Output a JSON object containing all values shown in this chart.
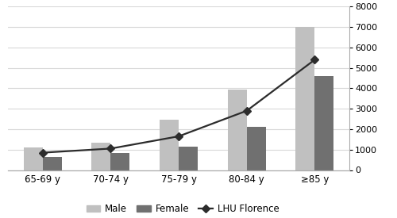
{
  "categories": [
    "65-69 y",
    "70-74 y",
    "75-79 y",
    "80-84 y",
    "≥85 y"
  ],
  "male_values": [
    1100,
    1350,
    2450,
    3950,
    7000
  ],
  "female_values": [
    650,
    850,
    1150,
    2100,
    4600
  ],
  "lhu_values": [
    850,
    1050,
    1650,
    2900,
    5400
  ],
  "male_color": "#C0C0C0",
  "female_color": "#707070",
  "lhu_color": "#2c2c2c",
  "ylim": [
    0,
    8000
  ],
  "yticks": [
    0,
    1000,
    2000,
    3000,
    4000,
    5000,
    6000,
    7000,
    8000
  ],
  "legend_labels": [
    "Male",
    "Female",
    "LHU Florence"
  ],
  "bar_width": 0.28,
  "background_color": "#ffffff",
  "grid_color": "#d8d8d8",
  "spine_color": "#aaaaaa"
}
